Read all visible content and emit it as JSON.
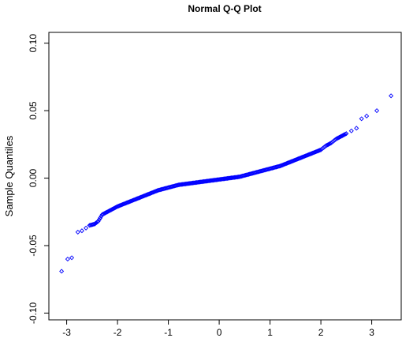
{
  "chart_data": {
    "type": "scatter",
    "title": "Normal Q-Q Plot",
    "xlabel": "",
    "ylabel": "Sample Quantiles",
    "xlim": [
      -3.35,
      3.58
    ],
    "ylim": [
      -0.105,
      0.108
    ],
    "x_ticks": [
      -3,
      -2,
      -1,
      0,
      1,
      2,
      3
    ],
    "x_tick_labels": [
      "-3",
      "-2",
      "-1",
      "0",
      "1",
      "2",
      "3"
    ],
    "y_ticks": [
      -0.1,
      -0.05,
      0.0,
      0.05,
      0.1
    ],
    "y_tick_labels": [
      "-0.10",
      "-0.05",
      "0.00",
      "0.05",
      "0.10"
    ],
    "grid": false,
    "legend": "none",
    "marker": "open-diamond",
    "marker_color": "#0000ff",
    "points": {
      "x": [
        -3.1,
        -2.98,
        -2.9,
        -2.78,
        -2.7,
        -2.62,
        -2.55,
        -2.45,
        -2.38,
        -2.3,
        -2.2,
        -2.1,
        -2.0,
        -1.8,
        -1.6,
        -1.4,
        -1.2,
        -1.0,
        -0.8,
        -0.6,
        -0.4,
        -0.2,
        0.0,
        0.2,
        0.4,
        0.6,
        0.8,
        1.0,
        1.2,
        1.4,
        1.6,
        1.8,
        2.0,
        2.1,
        2.2,
        2.3,
        2.4,
        2.5,
        2.6,
        2.7,
        2.8,
        2.9,
        3.1,
        3.38
      ],
      "y": [
        -0.069,
        -0.06,
        -0.059,
        -0.04,
        -0.039,
        -0.037,
        -0.035,
        -0.034,
        -0.032,
        -0.027,
        -0.025,
        -0.023,
        -0.021,
        -0.018,
        -0.015,
        -0.012,
        -0.009,
        -0.007,
        -0.005,
        -0.004,
        -0.003,
        -0.002,
        -0.001,
        0.0,
        0.001,
        0.003,
        0.005,
        0.007,
        0.009,
        0.012,
        0.015,
        0.018,
        0.021,
        0.024,
        0.026,
        0.029,
        0.031,
        0.033,
        0.035,
        0.037,
        0.044,
        0.046,
        0.05,
        0.061
      ]
    }
  }
}
